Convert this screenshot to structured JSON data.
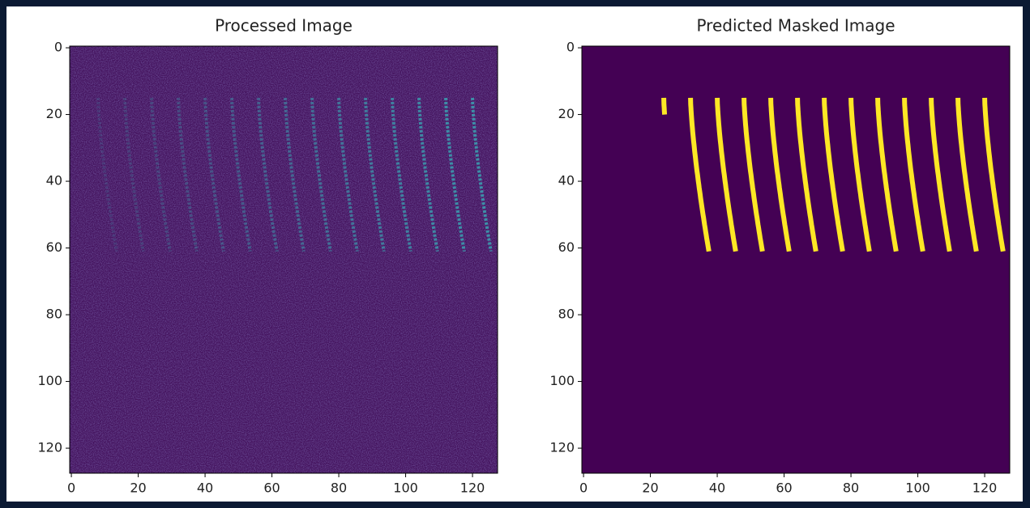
{
  "chart_data": [
    {
      "type": "image",
      "title": "Processed Image",
      "xlim": [
        -0.5,
        127.5
      ],
      "ylim": [
        127.5,
        -0.5
      ],
      "xticks": [
        0,
        20,
        40,
        60,
        80,
        100,
        120
      ],
      "yticks": [
        0,
        20,
        40,
        60,
        80,
        100,
        120
      ],
      "background": "#45145f",
      "color": "#3d8fa8"
    },
    {
      "type": "image",
      "title": "Predicted Masked Image",
      "xlim": [
        -0.5,
        127.5
      ],
      "ylim": [
        127.5,
        -0.5
      ],
      "xticks": [
        0,
        20,
        40,
        60,
        80,
        100,
        120
      ],
      "yticks": [
        0,
        20,
        40,
        60,
        80,
        100,
        120
      ],
      "background": "#440154",
      "color": "#fde725"
    }
  ]
}
